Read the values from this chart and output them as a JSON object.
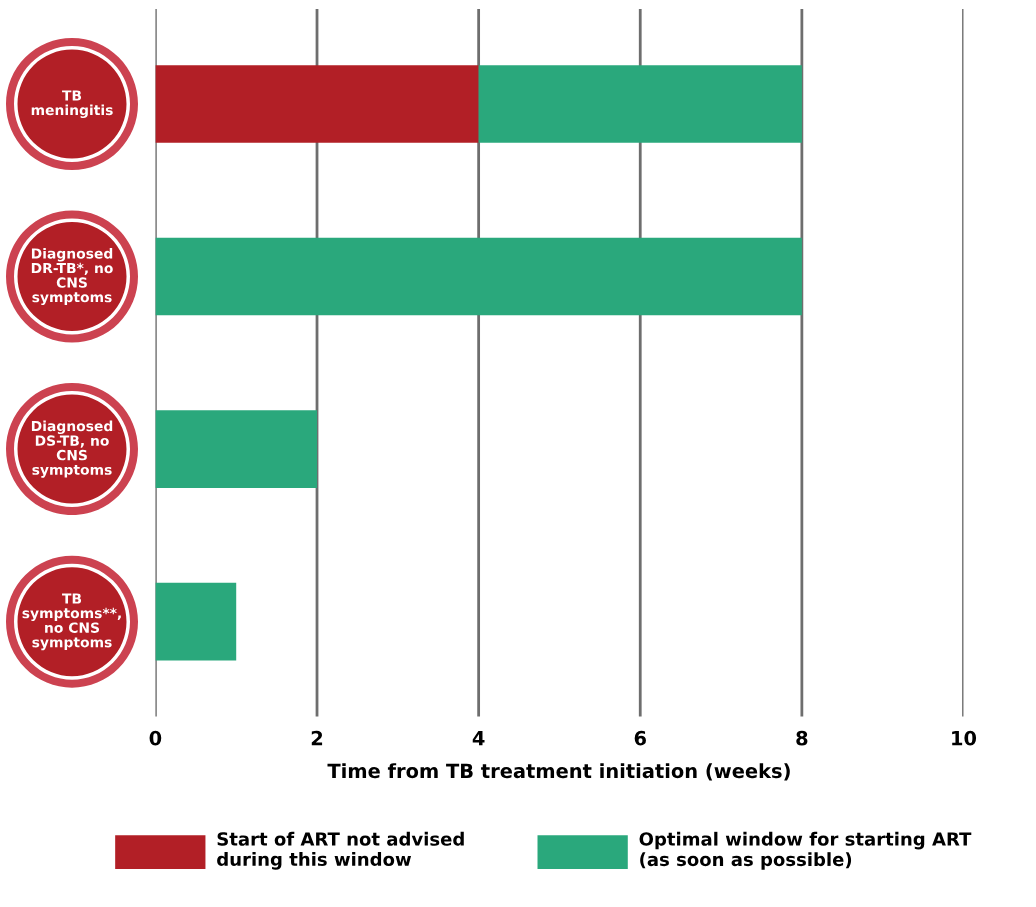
{
  "chart_data": {
    "type": "bar",
    "orientation": "horizontal",
    "stacked": true,
    "categories": [
      "TB\nmeningitis",
      "Diagnosed\nDR-TB*, no\nCNS\nsymptoms",
      "Diagnosed\nDS-TB, no\nCNS\nsymptoms",
      "TB\nsymptoms**,\nno CNS\nsymptoms"
    ],
    "series": [
      {
        "name": "Start of ART not advised\nduring this window",
        "color": "#b21f26",
        "values": [
          4,
          0,
          0,
          0
        ]
      },
      {
        "name": "Optimal window for starting ART\n(as soon as possible)",
        "color": "#2aa87c",
        "values": [
          4,
          8,
          2,
          1
        ]
      }
    ],
    "xlabel": "Time from TB treatment initiation (weeks)",
    "xlim": [
      0,
      10
    ],
    "xticks": [
      0,
      2,
      4,
      6,
      8,
      10
    ],
    "grid": "x",
    "legend": "bottom"
  }
}
